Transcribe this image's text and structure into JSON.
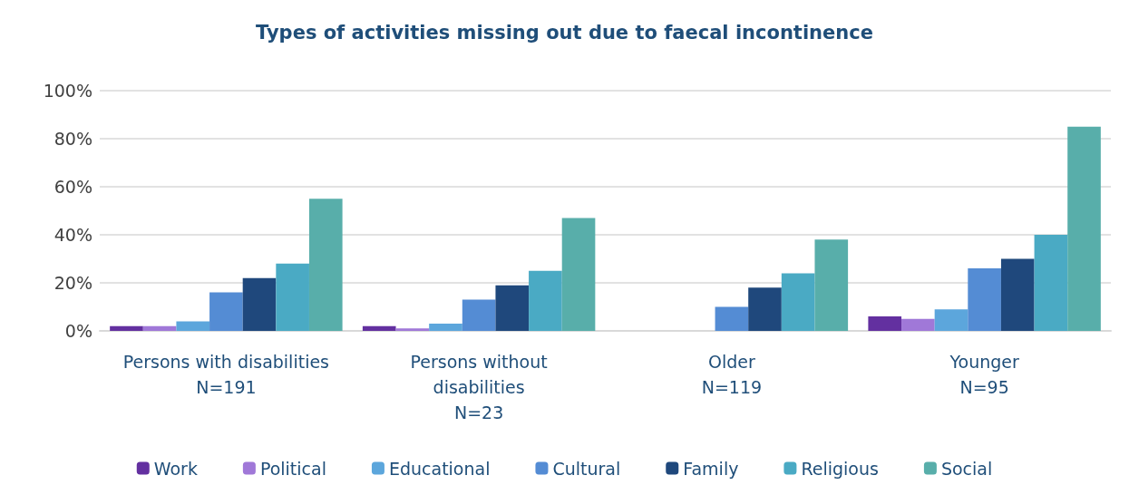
{
  "chart_data": {
    "type": "bar",
    "title": "Types of activities missing out due to faecal incontinence",
    "categories": [
      "Persons with disabilities\nN=191",
      "Persons without\ndisabilities\nN=23",
      "Older\nN=119",
      "Younger\nN=95"
    ],
    "series": [
      {
        "name": "Work",
        "color": "#6330a0",
        "values": [
          2,
          2,
          0,
          6
        ]
      },
      {
        "name": "Political",
        "color": "#a078d8",
        "values": [
          2,
          1,
          0,
          5
        ]
      },
      {
        "name": "Educational",
        "color": "#5ca6dc",
        "values": [
          4,
          3,
          0,
          9
        ]
      },
      {
        "name": "Cultural",
        "color": "#548cd4",
        "values": [
          16,
          13,
          10,
          26
        ]
      },
      {
        "name": "Family",
        "color": "#1f487c",
        "values": [
          22,
          19,
          18,
          30
        ]
      },
      {
        "name": "Religious",
        "color": "#4aaac4",
        "values": [
          28,
          25,
          24,
          40
        ]
      },
      {
        "name": "Social",
        "color": "#58aeaa",
        "values": [
          55,
          47,
          38,
          85
        ]
      }
    ],
    "ylim": [
      0,
      100
    ],
    "yticks": [
      {
        "value": 0,
        "label": "0%"
      },
      {
        "value": 20,
        "label": "20%"
      },
      {
        "value": 40,
        "label": "40%"
      },
      {
        "value": 60,
        "label": "60%"
      },
      {
        "value": 80,
        "label": "80%"
      },
      {
        "value": 100,
        "label": "100%"
      }
    ],
    "grid": "y",
    "legend": "bottom"
  }
}
